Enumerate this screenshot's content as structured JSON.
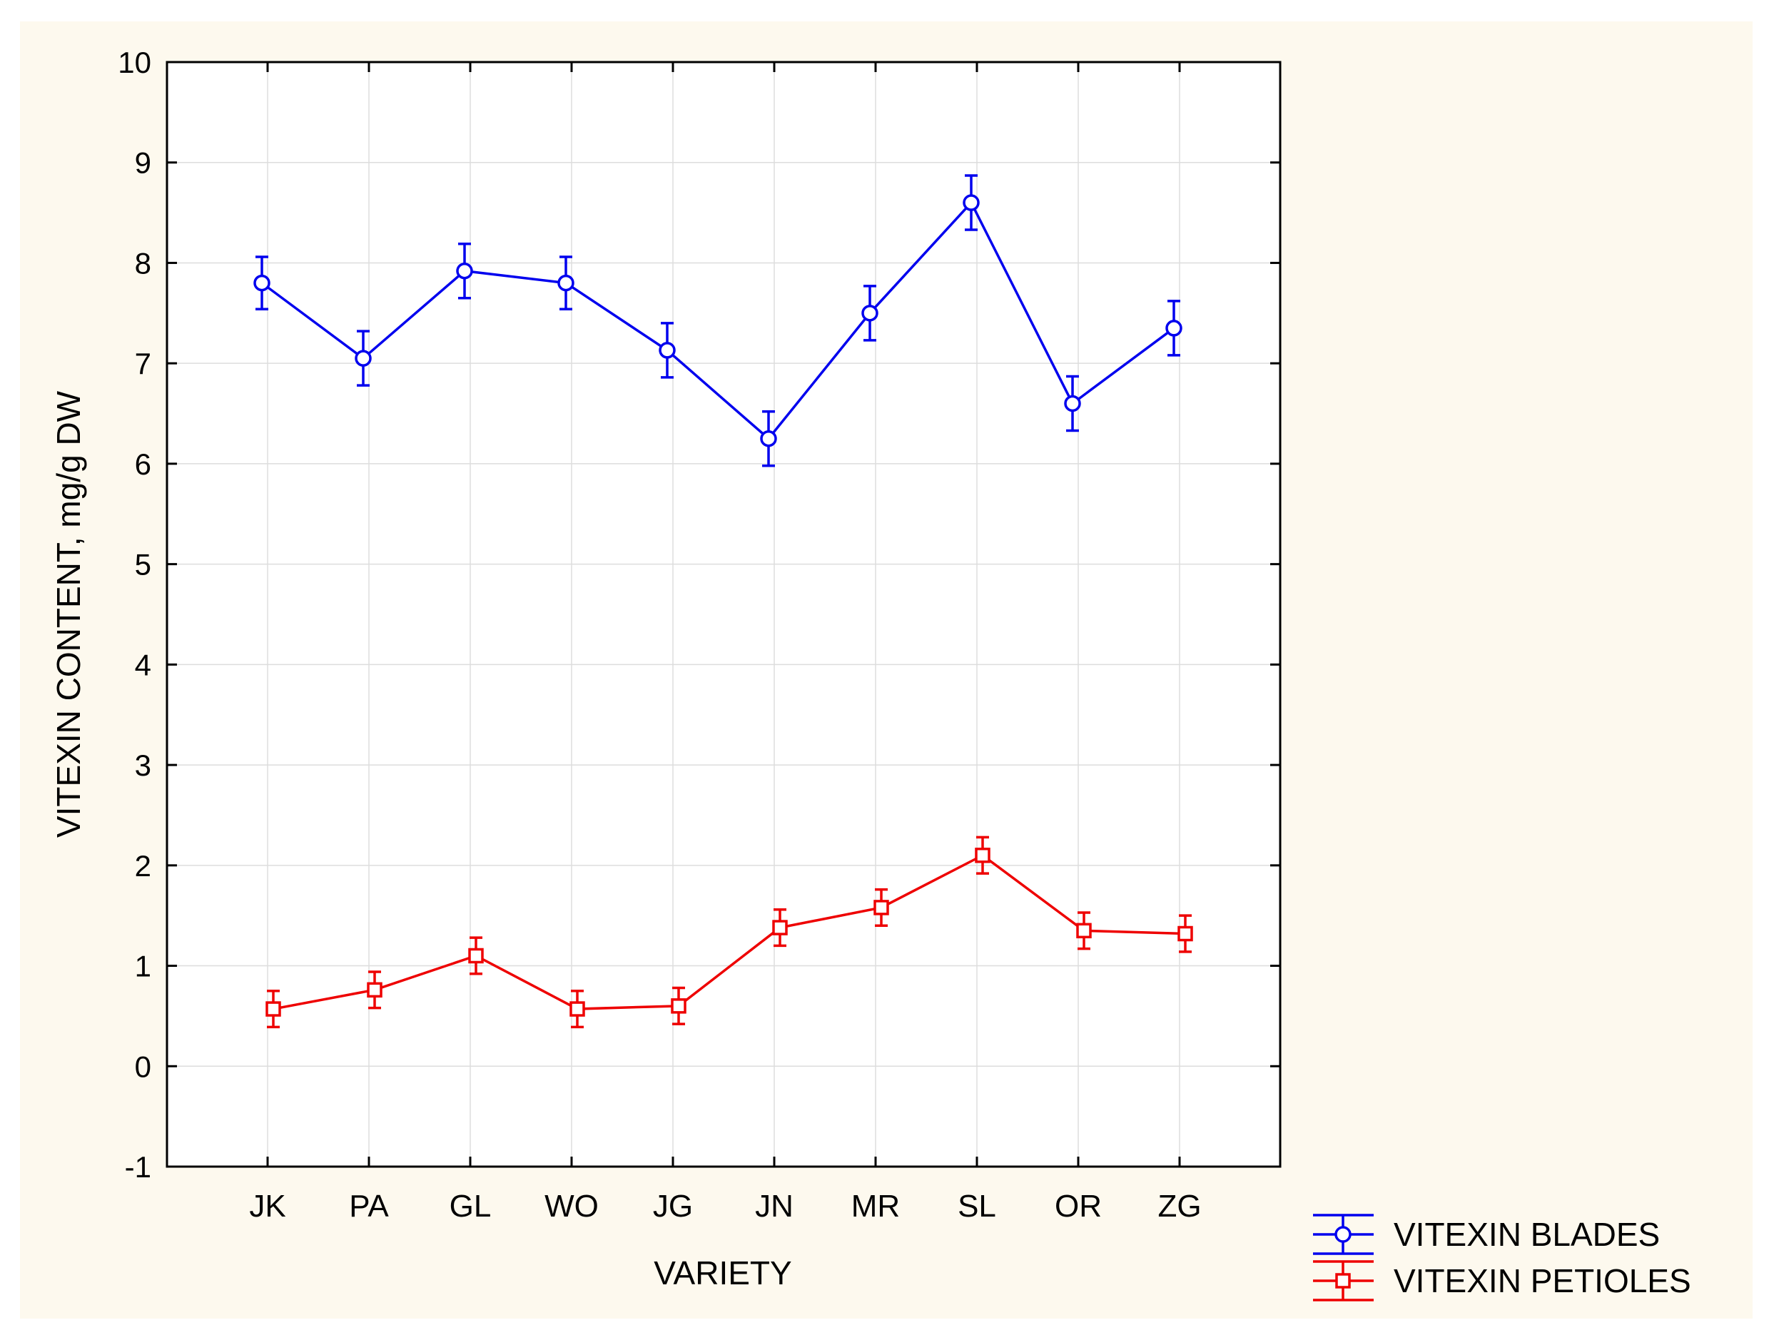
{
  "chart_data": {
    "type": "line",
    "title": "",
    "xlabel": "VARIETY",
    "ylabel": "VITEXIN CONTENT, mg/g DW",
    "ylim": [
      -1,
      10
    ],
    "yticks": [
      "-1",
      "0",
      "1",
      "2",
      "3",
      "4",
      "5",
      "6",
      "7",
      "8",
      "9",
      "10"
    ],
    "categories": [
      "JK",
      "PA",
      "GL",
      "WO",
      "JG",
      "JN",
      "MR",
      "SL",
      "OR",
      "ZG"
    ],
    "grid": true,
    "legend_position": "bottom-right, outside plot",
    "series": [
      {
        "name": "VITEXIN BLADES",
        "color": "#0000ee",
        "marker": "circle",
        "values": [
          7.8,
          7.05,
          7.92,
          7.8,
          7.13,
          6.25,
          7.5,
          8.6,
          6.6,
          7.35
        ],
        "error": [
          0.26,
          0.27,
          0.27,
          0.26,
          0.27,
          0.27,
          0.27,
          0.27,
          0.27,
          0.27
        ]
      },
      {
        "name": "VITEXIN PETIOLES",
        "color": "#ee0000",
        "marker": "square",
        "values": [
          0.57,
          0.76,
          1.1,
          0.57,
          0.6,
          1.38,
          1.58,
          2.1,
          1.35,
          1.32
        ],
        "error": [
          0.18,
          0.18,
          0.18,
          0.18,
          0.18,
          0.18,
          0.18,
          0.18,
          0.18,
          0.18
        ]
      }
    ]
  },
  "colors": {
    "background": "#fdf9ee",
    "plot_background": "#ffffff",
    "grid": "#dddddd",
    "axis": "#000000"
  }
}
